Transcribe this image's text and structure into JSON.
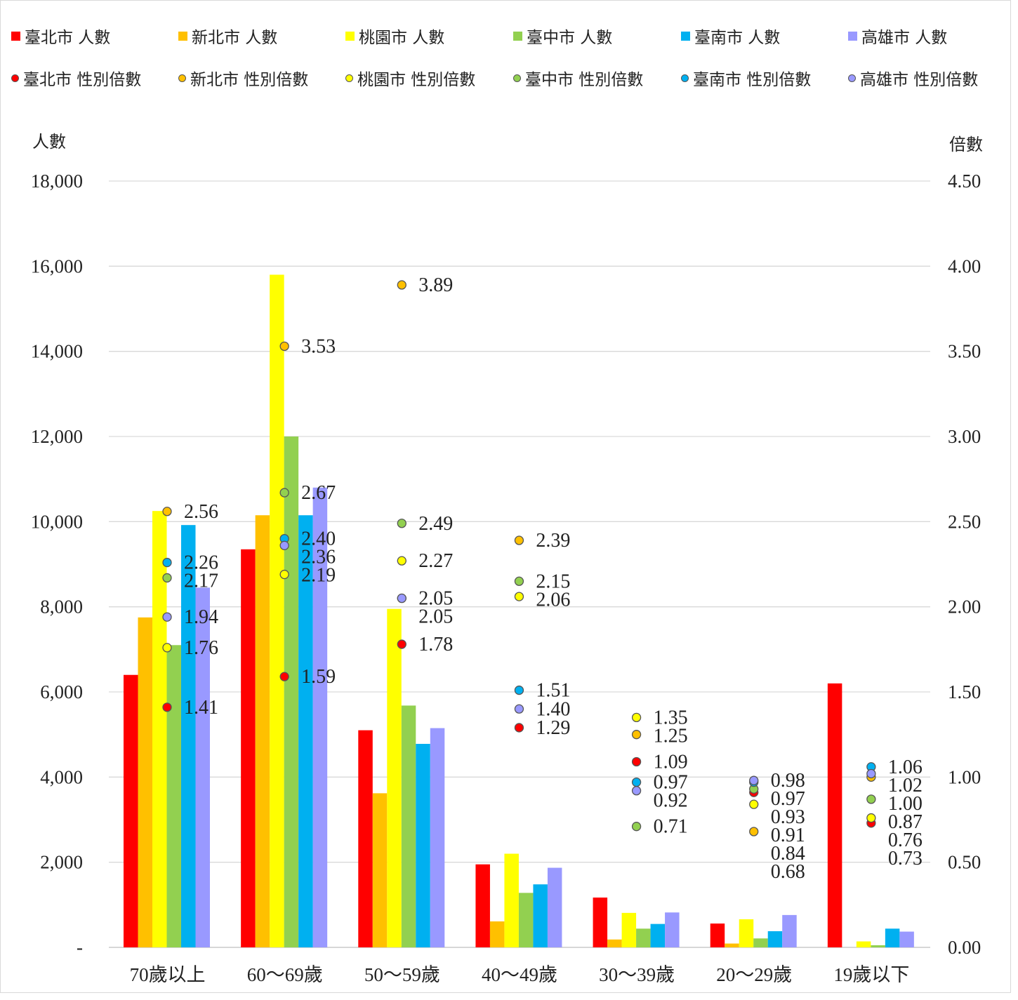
{
  "legend": {
    "bars": [
      {
        "label": "臺北市 人數",
        "color": "#ff0000"
      },
      {
        "label": "新北市 人數",
        "color": "#ffc000"
      },
      {
        "label": "桃園市 人數",
        "color": "#ffff00"
      },
      {
        "label": "臺中市 人數",
        "color": "#92d050"
      },
      {
        "label": "臺南市 人數",
        "color": "#00b0f0"
      },
      {
        "label": "高雄市 人數",
        "color": "#9999ff"
      }
    ],
    "markers": [
      {
        "label": "臺北市 性別倍數",
        "color": "#ff0000"
      },
      {
        "label": "新北市 性別倍數",
        "color": "#ffc000"
      },
      {
        "label": "桃園市 性別倍數",
        "color": "#ffff00"
      },
      {
        "label": "臺中市 性別倍數",
        "color": "#92d050"
      },
      {
        "label": "臺南市 性別倍數",
        "color": "#00b0f0"
      },
      {
        "label": "高雄市 性別倍數",
        "color": "#9999ff"
      }
    ]
  },
  "axes": {
    "left_title": "人數",
    "right_title": "倍數",
    "left_ticks": [
      "-",
      "2,000",
      "4,000",
      "6,000",
      "8,000",
      "10,000",
      "12,000",
      "14,000",
      "16,000",
      "18,000"
    ],
    "right_ticks": [
      "0.00",
      "0.50",
      "1.00",
      "1.50",
      "2.00",
      "2.50",
      "3.00",
      "3.50",
      "4.00",
      "4.50"
    ]
  },
  "chart_data": {
    "type": "bar",
    "categories": [
      "70歲以上",
      "60～69歲",
      "50～59歲",
      "40～49歲",
      "30～39歲",
      "20～29歲",
      "19歲以下"
    ],
    "ylim": [
      0,
      18000
    ],
    "y2lim": [
      0,
      4.5
    ],
    "grid": true,
    "legend_position": "top",
    "series": [
      {
        "name": "臺北市 人數",
        "axis": "left",
        "color": "#ff0000",
        "values": [
          6400,
          9350,
          5100,
          1950,
          1170,
          560,
          6200
        ]
      },
      {
        "name": "新北市 人數",
        "axis": "left",
        "color": "#ffc000",
        "values": [
          7750,
          10150,
          3620,
          610,
          185,
          90,
          0
        ]
      },
      {
        "name": "桃園市 人數",
        "axis": "left",
        "color": "#ffff00",
        "values": [
          10250,
          15800,
          7950,
          2200,
          810,
          660,
          140
        ]
      },
      {
        "name": "臺中市 人數",
        "axis": "left",
        "color": "#92d050",
        "values": [
          7100,
          12000,
          5680,
          1280,
          440,
          210,
          50
        ]
      },
      {
        "name": "臺南市 人數",
        "axis": "left",
        "color": "#00b0f0",
        "values": [
          9920,
          10150,
          4780,
          1480,
          550,
          380,
          440
        ]
      },
      {
        "name": "高雄市 人數",
        "axis": "left",
        "color": "#9999ff",
        "values": [
          8450,
          10800,
          5150,
          1870,
          820,
          760,
          370
        ]
      },
      {
        "name": "臺北市 性別倍數",
        "axis": "right",
        "type": "scatter",
        "color": "#ff0000",
        "values": [
          1.41,
          1.59,
          1.78,
          1.29,
          1.09,
          0.91,
          0.73
        ]
      },
      {
        "name": "新北市 性別倍數",
        "axis": "right",
        "type": "scatter",
        "color": "#ffc000",
        "values": [
          2.56,
          3.53,
          3.89,
          2.39,
          1.25,
          0.68,
          1.0
        ]
      },
      {
        "name": "桃園市 性別倍數",
        "axis": "right",
        "type": "scatter",
        "color": "#ffff00",
        "values": [
          1.76,
          2.19,
          2.27,
          2.06,
          1.35,
          0.84,
          0.76
        ]
      },
      {
        "name": "臺中市 性別倍數",
        "axis": "right",
        "type": "scatter",
        "color": "#92d050",
        "values": [
          2.17,
          2.67,
          2.49,
          2.15,
          0.71,
          0.93,
          0.87
        ]
      },
      {
        "name": "臺南市 性別倍數",
        "axis": "right",
        "type": "scatter",
        "color": "#00b0f0",
        "values": [
          2.26,
          2.4,
          2.05,
          1.51,
          0.97,
          0.97,
          1.06
        ]
      },
      {
        "name": "高雄市 性別倍數",
        "axis": "right",
        "type": "scatter",
        "color": "#9999ff",
        "values": [
          1.94,
          2.36,
          2.05,
          1.4,
          0.92,
          0.98,
          1.02
        ]
      }
    ]
  }
}
